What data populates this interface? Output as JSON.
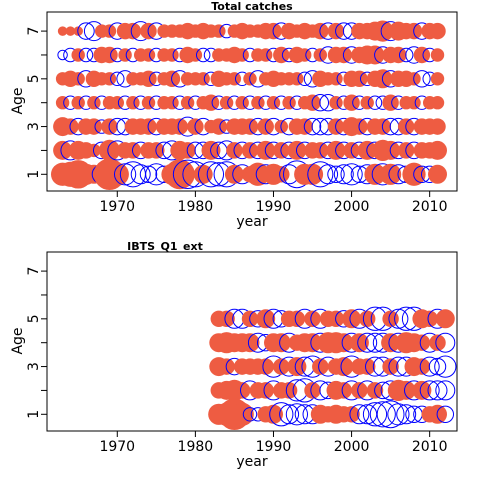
{
  "colors": {
    "positive": "#ee5c42",
    "negative": "#0000ff",
    "frame": "#000000"
  },
  "chart_data": [
    {
      "type": "bubble",
      "title": "Total catches",
      "xlabel": "year",
      "ylabel": "Age",
      "xlim": [
        1961,
        2013.5
      ],
      "ylim": [
        0.3,
        7.8
      ],
      "xticks": [
        "1970",
        "1980",
        "1990",
        "2000",
        "2010"
      ],
      "xtick_values": [
        1970,
        1980,
        1990,
        2000,
        2010
      ],
      "yticks": [
        "1",
        "3",
        "5",
        "7"
      ],
      "ytick_values": [
        1,
        3,
        5,
        7
      ],
      "ages": [
        1,
        2,
        3,
        4,
        5,
        6,
        7
      ],
      "years": [
        1963,
        2011
      ],
      "residual_encoding": "filled = positive, open = negative",
      "residuals": {
        "1": [
          0.6,
          0.7,
          0.9,
          0.5,
          0.4,
          -0.4,
          1.1,
          0.6,
          -0.5,
          -0.7,
          -0.4,
          -0.3,
          -0.5,
          -0.3,
          0.5,
          1.0,
          -0.9,
          -0.7,
          0.4,
          -0.7,
          -0.6,
          -0.7,
          0.4,
          -0.4,
          0.3,
          0.6,
          -0.4,
          0.5,
          0.3,
          -0.4,
          -0.8,
          0.5,
          0.5,
          -0.7,
          -0.4,
          -0.3,
          -0.4,
          -0.5,
          -0.3,
          -0.4,
          0.5,
          -0.5,
          0.5,
          -0.4,
          -0.3,
          0.6,
          -0.3,
          -0.3,
          0.4
        ],
        "2": [
          0.4,
          -0.4,
          0.4,
          0.3,
          0.2,
          -0.3,
          0.5,
          -0.4,
          0.3,
          0.3,
          -0.3,
          0.3,
          0.3,
          -0.3,
          -0.4,
          0.4,
          0.3,
          -0.3,
          -0.3,
          0.4,
          -0.3,
          -0.4,
          0.3,
          -0.3,
          0.3,
          -0.3,
          0.4,
          -0.3,
          0.3,
          -0.3,
          0.4,
          -0.3,
          0.3,
          0.3,
          -0.3,
          0.4,
          -0.3,
          0.3,
          -0.3,
          0.4,
          -0.3,
          0.5,
          0.4,
          -0.3,
          0.3,
          -0.3,
          0.3,
          0.3,
          0.4
        ],
        "3": [
          0.4,
          0.3,
          -0.3,
          0.3,
          0.3,
          -0.2,
          0.3,
          -0.3,
          -0.3,
          0.3,
          0.3,
          0.3,
          -0.3,
          0.3,
          0.3,
          0.3,
          -0.4,
          0.3,
          -0.3,
          0.2,
          0.3,
          -0.2,
          0.3,
          0.3,
          0.3,
          -0.3,
          0.3,
          -0.3,
          0.2,
          -0.3,
          0.3,
          0.3,
          -0.3,
          -0.3,
          -0.3,
          0.3,
          -0.3,
          0.4,
          0.3,
          -0.3,
          0.3,
          0.3,
          -0.3,
          -0.3,
          0.3,
          -0.3,
          0.3,
          0.3,
          0.3
        ],
        "4": [
          0.2,
          -0.2,
          0.2,
          -0.2,
          0.2,
          -0.2,
          0.2,
          0.2,
          -0.2,
          0.2,
          -0.2,
          0.2,
          -0.2,
          0.2,
          0.2,
          -0.2,
          0.2,
          -0.2,
          0.2,
          0.3,
          -0.2,
          0.2,
          -0.2,
          0.2,
          -0.2,
          0.2,
          -0.2,
          0.2,
          -0.2,
          0.2,
          -0.2,
          0.2,
          0.3,
          -0.3,
          -0.3,
          0.2,
          -0.2,
          0.3,
          -0.2,
          0.2,
          -0.2,
          -0.2,
          0.3,
          -0.2,
          0.2,
          0.2,
          -0.2,
          0.2,
          0.2
        ],
        "5": [
          0.2,
          0.3,
          0.2,
          -0.3,
          0.3,
          0.2,
          0.2,
          -0.2,
          -0.3,
          0.2,
          0.2,
          0.3,
          -0.2,
          0.2,
          0.3,
          -0.3,
          0.2,
          0.2,
          0.2,
          -0.2,
          0.3,
          0.2,
          0.2,
          -0.2,
          0.2,
          -0.3,
          0.2,
          0.3,
          0.2,
          0.2,
          0.2,
          -0.2,
          -0.3,
          0.3,
          0.2,
          0.2,
          -0.2,
          0.3,
          0.3,
          -0.2,
          0.3,
          0.4,
          -0.3,
          0.3,
          0.3,
          0.2,
          -0.3,
          -0.2,
          0.2
        ],
        "6": [
          -0.1,
          -0.2,
          0.2,
          -0.2,
          -0.2,
          0.3,
          0.3,
          -0.2,
          0.2,
          -0.2,
          0.2,
          0.2,
          -0.2,
          0.2,
          0.2,
          -0.2,
          0.3,
          0.2,
          -0.2,
          -0.2,
          0.2,
          0.2,
          0.3,
          0.2,
          -0.2,
          0.2,
          0.2,
          -0.2,
          0.3,
          -0.2,
          0.3,
          0.2,
          -0.2,
          0.2,
          -0.3,
          0.3,
          0.3,
          -0.3,
          0.3,
          0.4,
          0.4,
          -0.3,
          0.3,
          0.3,
          -0.2,
          -0.3,
          0.3,
          -0.2,
          0.2
        ],
        "7": [
          0.1,
          0.1,
          0.1,
          -0.3,
          -0.4,
          0.2,
          0.2,
          -0.3,
          0.3,
          0.3,
          -0.4,
          0.3,
          -0.3,
          0.2,
          0.2,
          0.2,
          0.3,
          0.2,
          0.3,
          0.2,
          0.2,
          -0.2,
          0.2,
          0.3,
          0.2,
          0.2,
          0.3,
          0.3,
          -0.3,
          0.3,
          0.2,
          0.3,
          0.2,
          0.3,
          -0.3,
          0.3,
          -0.3,
          -0.3,
          0.3,
          0.3,
          0.4,
          0.5,
          -0.4,
          0.4,
          0.3,
          0.3,
          -0.3,
          0.3,
          0.3
        ]
      }
    },
    {
      "type": "bubble",
      "title": "IBTS_Q1_ext",
      "xlabel": "year",
      "ylabel": "Age",
      "xlim": [
        1961,
        2013.5
      ],
      "ylim": [
        0.3,
        7.8
      ],
      "xticks": [
        "1970",
        "1980",
        "1990",
        "2000",
        "2010"
      ],
      "xtick_values": [
        1970,
        1980,
        1990,
        2000,
        2010
      ],
      "yticks": [
        "1",
        "3",
        "5",
        "7"
      ],
      "ytick_values": [
        1,
        3,
        5,
        7
      ],
      "ages": [
        1,
        2,
        3,
        4,
        5
      ],
      "years": [
        1983,
        2012
      ],
      "residual_encoding": "filled = positive, open = negative",
      "residuals": {
        "1": [
          0.5,
          0.6,
          1.1,
          0.6,
          -0.2,
          -0.2,
          0.3,
          0.4,
          -0.6,
          -0.4,
          -0.5,
          -0.4,
          -0.4,
          0.4,
          0.3,
          0.4,
          0.3,
          0.3,
          -0.4,
          -0.4,
          -0.6,
          -0.7,
          -0.8,
          -0.5,
          -0.4,
          -0.3,
          -0.3,
          0.3,
          0.4,
          -0.3
        ],
        "2": [
          0.3,
          0.4,
          0.5,
          0.3,
          -0.4,
          0.3,
          0.3,
          -0.4,
          0.3,
          0.3,
          -0.5,
          -0.6,
          0.3,
          -0.4,
          -0.3,
          0.4,
          0.3,
          -0.4,
          0.3,
          -0.4,
          0.3,
          -0.3,
          -0.4,
          0.5,
          0.4,
          -0.4,
          0.4,
          -0.4,
          -0.4,
          -0.4
        ],
        "3": [
          0.4,
          0.3,
          -0.3,
          0.3,
          0.3,
          0.3,
          0.3,
          -0.5,
          0.3,
          -0.4,
          0.4,
          -0.4,
          -0.5,
          0.3,
          -0.4,
          0.3,
          0.4,
          -0.5,
          0.3,
          0.3,
          -0.4,
          -0.4,
          0.3,
          -0.4,
          -0.4,
          0.4,
          0.3,
          -0.4,
          -0.3,
          -0.5
        ],
        "4": [
          0.4,
          0.5,
          0.4,
          0.4,
          0.4,
          -0.4,
          -0.3,
          0.4,
          0.4,
          -0.4,
          0.3,
          0.4,
          0.4,
          -0.4,
          0.5,
          0.5,
          0.4,
          -0.4,
          0.4,
          -0.4,
          -0.4,
          -0.4,
          0.4,
          -0.4,
          0.5,
          0.4,
          0.3,
          -0.4,
          0.3,
          -0.4
        ],
        "5": [
          0.3,
          0.3,
          -0.4,
          -0.4,
          0.3,
          -0.3,
          0.4,
          -0.4,
          -0.3,
          0.3,
          0.3,
          -0.4,
          0.3,
          -0.4,
          0.3,
          0.3,
          -0.3,
          0.4,
          -0.4,
          0.3,
          -0.6,
          -0.6,
          0.3,
          -0.4,
          -0.6,
          -0.6,
          0.4,
          0.3,
          -0.4,
          0.4
        ]
      }
    }
  ]
}
